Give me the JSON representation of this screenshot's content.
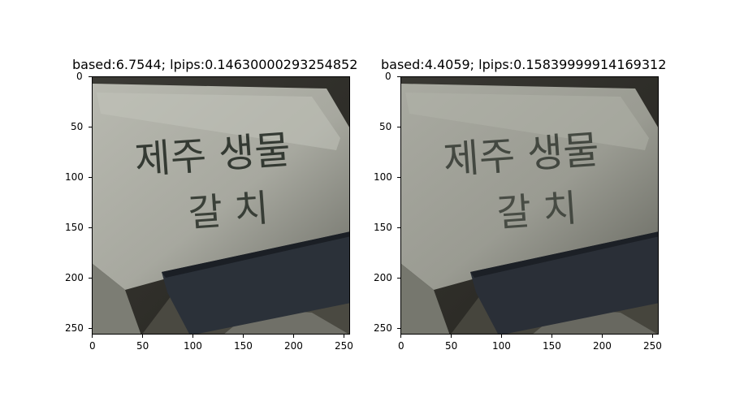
{
  "panels": [
    {
      "title": "based:6.7544; lpips:0.14630000293254852",
      "x_ticks": [
        "0",
        "50",
        "100",
        "150",
        "200",
        "250"
      ],
      "y_ticks": [
        "0",
        "50",
        "100",
        "150",
        "200",
        "250"
      ],
      "image_text": [
        "제주 생물",
        "갈 치"
      ]
    },
    {
      "title": "based:4.4059; lpips:0.15839999914169312",
      "x_ticks": [
        "0",
        "50",
        "100",
        "150",
        "200",
        "250"
      ],
      "y_ticks": [
        "0",
        "50",
        "100",
        "150",
        "200",
        "250"
      ],
      "image_text": [
        "제주 생물",
        "갈 치"
      ]
    }
  ],
  "colors": {
    "box_white": "#cfcfc6",
    "box_shadow": "#8e8f86",
    "dark_bg": "#2f2f29",
    "strap": "#2b3139",
    "ink": "#1f261f"
  }
}
